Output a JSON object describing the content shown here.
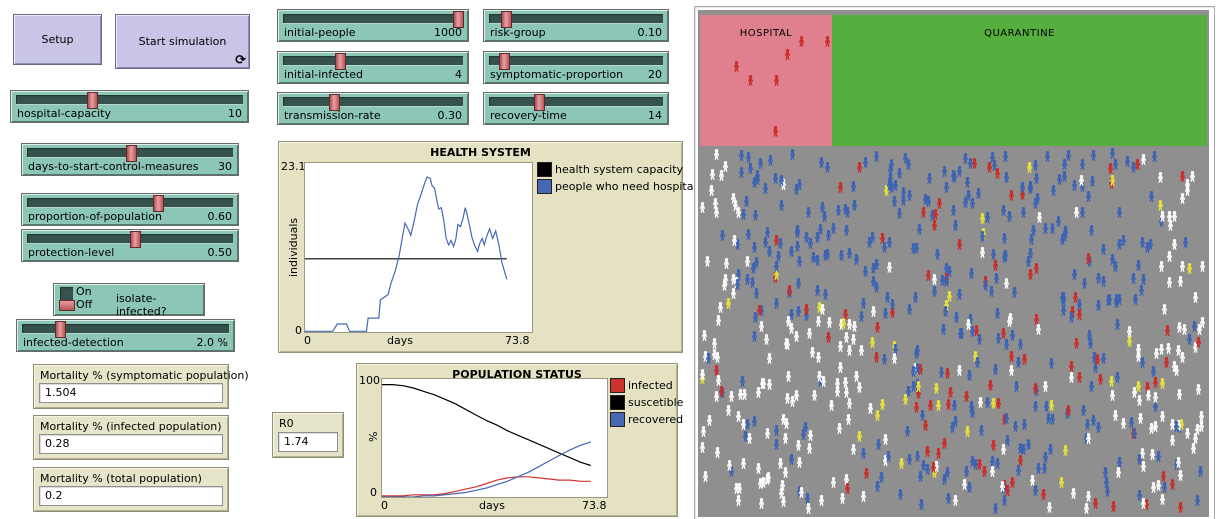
{
  "buttons": {
    "setup": "Setup",
    "start": "Start simulation",
    "forever_icon": "⟳"
  },
  "sliders": {
    "hospital_capacity": {
      "label": "hospital-capacity",
      "value": "10",
      "frac": 0.33
    },
    "days_to_start": {
      "label": "days-to-start-control-measures",
      "value": "30",
      "frac": 0.5
    },
    "proportion_of_population": {
      "label": "proportion-of-population",
      "value": "0.60",
      "frac": 0.63
    },
    "protection_level": {
      "label": "protection-level",
      "value": "0.50",
      "frac": 0.52
    },
    "infected_detection": {
      "label": "infected-detection",
      "value": "2.0 %",
      "frac": 0.18
    },
    "initial_people": {
      "label": "initial-people",
      "value": "1000",
      "frac": 0.965
    },
    "initial_infected": {
      "label": "initial-infected",
      "value": "4",
      "frac": 0.31
    },
    "transmission_rate": {
      "label": "transmission-rate",
      "value": "0.30",
      "frac": 0.28
    },
    "risk_group": {
      "label": "risk-group",
      "value": "0.10",
      "frac": 0.09
    },
    "symptomatic_proportion": {
      "label": "symptomatic-proportion",
      "value": "20",
      "frac": 0.08
    },
    "recovery_time": {
      "label": "recovery-time",
      "value": "14",
      "frac": 0.28
    }
  },
  "switch": {
    "on": "On",
    "off": "Off",
    "label": "isolate-infected?",
    "state": "off"
  },
  "monitors": {
    "mortality_symptomatic": {
      "label": "Mortality % (symptomatic population)",
      "value": "1.504"
    },
    "mortality_infected": {
      "label": "Mortality % (infected population)",
      "value": "0.28"
    },
    "mortality_total": {
      "label": "Mortality % (total population)",
      "value": "0.2"
    },
    "r0": {
      "label": "R0",
      "value": "1.74"
    }
  },
  "chart_data": [
    {
      "type": "line",
      "title": "HEALTH SYSTEM",
      "xlabel": "days",
      "ylabel": "individuals",
      "xlim": [
        0,
        73.8
      ],
      "ylim": [
        0,
        23.1
      ],
      "x_tick_labels": [
        "0",
        "73.8"
      ],
      "y_tick_labels": [
        "0",
        "23.1"
      ],
      "legend_position": "right",
      "grid": false,
      "series": [
        {
          "name": "health system capacity",
          "color": "#000000",
          "points": [
            [
              0,
              10
            ],
            [
              65.6,
              10
            ]
          ]
        },
        {
          "name": "people who need hospital",
          "color": "#4668b3",
          "points": [
            [
              0,
              0.1
            ],
            [
              9,
              0.1
            ],
            [
              10.5,
              1.1
            ],
            [
              13.5,
              1.1
            ],
            [
              14.5,
              0.1
            ],
            [
              20,
              0.1
            ],
            [
              20.5,
              1.9
            ],
            [
              24,
              1.9
            ],
            [
              24.5,
              4.4
            ],
            [
              27,
              5.1
            ],
            [
              28,
              6.7
            ],
            [
              29.4,
              8.4
            ],
            [
              30.6,
              10.4
            ],
            [
              31.6,
              12.8
            ],
            [
              32.5,
              14.9
            ],
            [
              33.8,
              13.8
            ],
            [
              34.4,
              13.2
            ],
            [
              35.7,
              15.6
            ],
            [
              36.6,
              17.5
            ],
            [
              37.7,
              18.8
            ],
            [
              38.8,
              20.2
            ],
            [
              39.7,
              21.2
            ],
            [
              40.7,
              21
            ],
            [
              41.3,
              20
            ],
            [
              42.1,
              19.7
            ],
            [
              42.9,
              17.9
            ],
            [
              43.5,
              16.8
            ],
            [
              44.3,
              17
            ],
            [
              45.1,
              15.3
            ],
            [
              45.9,
              12.8
            ],
            [
              46.7,
              11.9
            ],
            [
              47.5,
              12.5
            ],
            [
              48.3,
              11.7
            ],
            [
              49,
              12.6
            ],
            [
              49.7,
              14.7
            ],
            [
              50.6,
              14.4
            ],
            [
              51.4,
              15.6
            ],
            [
              52.1,
              17
            ],
            [
              52.8,
              15.9
            ],
            [
              53.5,
              14.5
            ],
            [
              54.3,
              12.9
            ],
            [
              55.2,
              11.8
            ],
            [
              56.1,
              11
            ],
            [
              56.8,
              12.1
            ],
            [
              57.6,
              12.8
            ],
            [
              58.3,
              11.9
            ],
            [
              59,
              13
            ],
            [
              60,
              14.1
            ],
            [
              61,
              12.8
            ],
            [
              62,
              13.8
            ],
            [
              63,
              12
            ],
            [
              64,
              9.5
            ],
            [
              65.6,
              7.2
            ]
          ]
        }
      ]
    },
    {
      "type": "line",
      "title": "POPULATION STATUS",
      "xlabel": "days",
      "ylabel": "%",
      "xlim": [
        0,
        73.8
      ],
      "ylim": [
        0,
        105
      ],
      "x_tick_labels": [
        "0",
        "73.8"
      ],
      "y_tick_labels": [
        "0",
        "100"
      ],
      "legend_position": "right",
      "grid": false,
      "series": [
        {
          "name": "infected",
          "color": "#cc3330",
          "points": [
            [
              0,
              1
            ],
            [
              3.4,
              1
            ],
            [
              6.9,
              1
            ],
            [
              10.3,
              2
            ],
            [
              13.7,
              2
            ],
            [
              17.1,
              2
            ],
            [
              20.6,
              3
            ],
            [
              24,
              5
            ],
            [
              27.4,
              7
            ],
            [
              30.8,
              9
            ],
            [
              34.3,
              12
            ],
            [
              37.7,
              15
            ],
            [
              41.1,
              17
            ],
            [
              44.5,
              18
            ],
            [
              48,
              18
            ],
            [
              51.4,
              17
            ],
            [
              54.8,
              16
            ],
            [
              58.2,
              15
            ],
            [
              61.7,
              15
            ],
            [
              65.1,
              14
            ],
            [
              68.5,
              14
            ]
          ]
        },
        {
          "name": "suscetible",
          "color": "#000000",
          "points": [
            [
              0,
              100
            ],
            [
              3.4,
              100
            ],
            [
              6.9,
              99
            ],
            [
              10.3,
              97
            ],
            [
              13.7,
              94
            ],
            [
              17.1,
              91
            ],
            [
              20.6,
              87
            ],
            [
              24,
              83
            ],
            [
              27.4,
              78
            ],
            [
              30.8,
              73
            ],
            [
              34.3,
              68
            ],
            [
              37.7,
              64
            ],
            [
              41.1,
              59
            ],
            [
              44.5,
              55
            ],
            [
              48,
              51
            ],
            [
              51.4,
              47
            ],
            [
              54.8,
              43
            ],
            [
              58.2,
              39
            ],
            [
              61.7,
              35
            ],
            [
              65.1,
              31
            ],
            [
              68.5,
              28
            ]
          ]
        },
        {
          "name": "recovered",
          "color": "#4668b3",
          "points": [
            [
              0,
              0
            ],
            [
              3.4,
              0
            ],
            [
              6.9,
              0
            ],
            [
              10.3,
              0
            ],
            [
              13.7,
              1
            ],
            [
              17.1,
              1
            ],
            [
              20.6,
              2
            ],
            [
              24,
              3
            ],
            [
              27.4,
              4
            ],
            [
              30.8,
              6
            ],
            [
              34.3,
              8
            ],
            [
              37.7,
              11
            ],
            [
              41.1,
              14
            ],
            [
              44.5,
              18
            ],
            [
              48,
              22
            ],
            [
              51.4,
              27
            ],
            [
              54.8,
              32
            ],
            [
              58.2,
              37
            ],
            [
              61.7,
              42
            ],
            [
              65.1,
              46
            ],
            [
              68.5,
              49
            ]
          ]
        }
      ]
    }
  ],
  "world": {
    "hospital_label": "HOSPITAL",
    "quarantine_label": "QUARANTINE",
    "colors": {
      "hospital_bg": "#e0808f",
      "quarantine_bg": "#56ae3e",
      "field_bg": "#8f8f8f",
      "agent_white": "#ffffff",
      "agent_blue": "#3a62b5",
      "agent_red": "#cc2b27",
      "agent_yellow": "#e8e23b"
    },
    "hospital_patients": [
      [
        98,
        21
      ],
      [
        124,
        21
      ],
      [
        84,
        34
      ],
      [
        33,
        46
      ],
      [
        47,
        60
      ],
      [
        73,
        60
      ],
      [
        72,
        111
      ]
    ],
    "field_agents": {
      "seed": 13,
      "count": 700
    }
  }
}
